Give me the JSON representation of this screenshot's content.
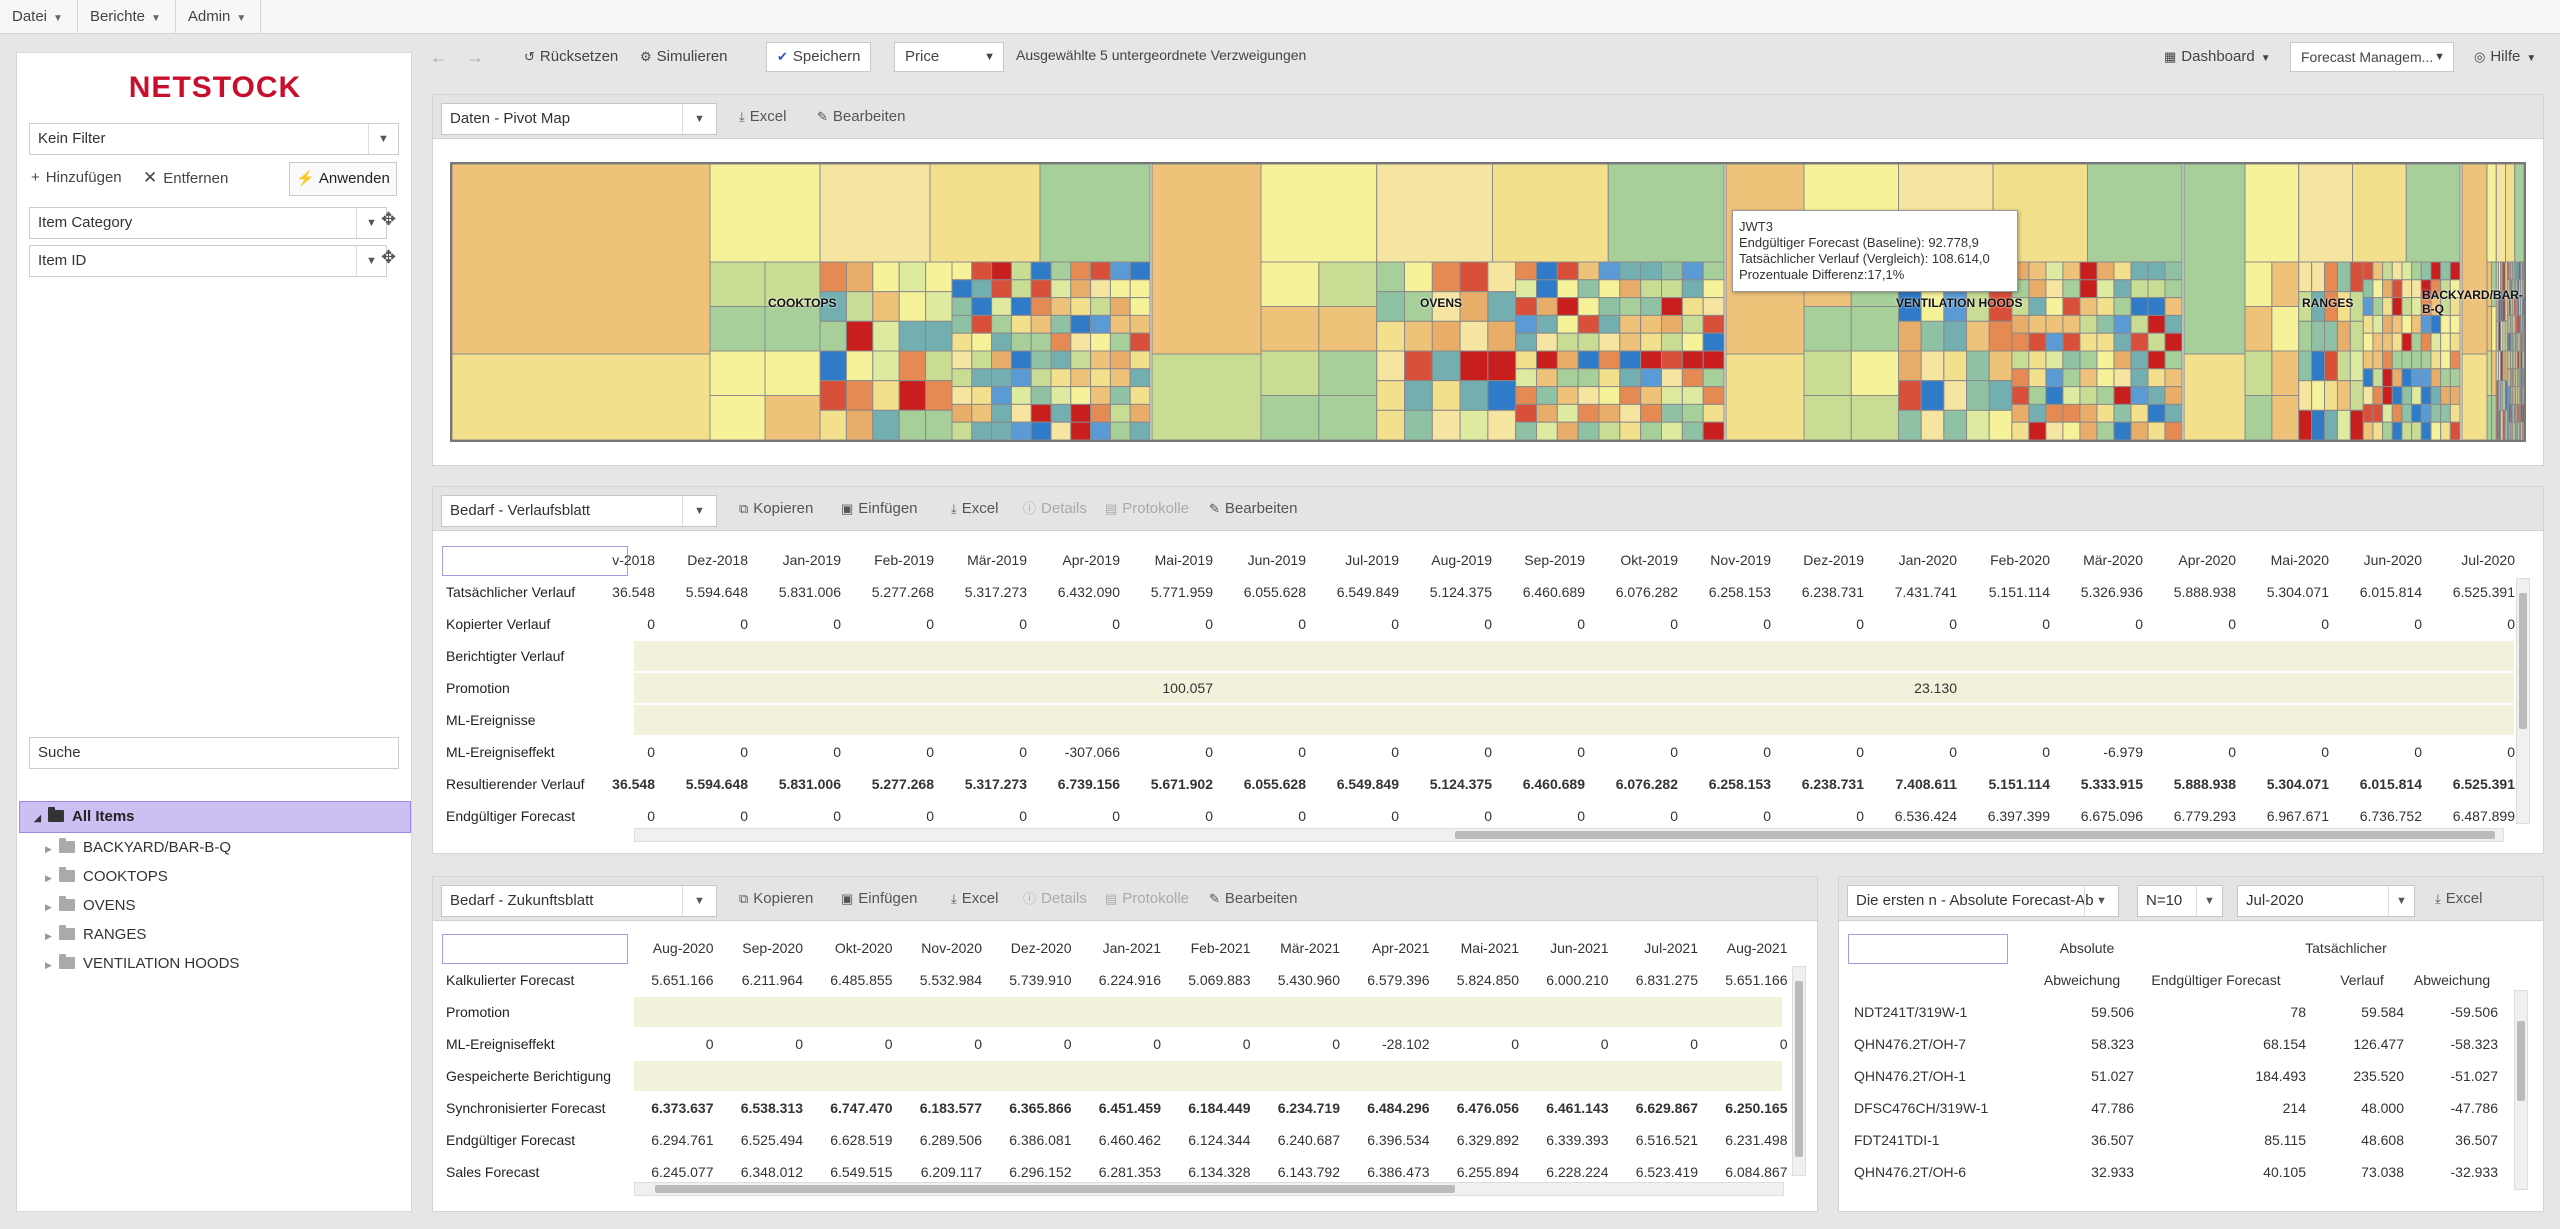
{
  "menu": {
    "items": [
      "Datei",
      "Berichte",
      "Admin"
    ]
  },
  "brand": {
    "logo": "NETSTOCK"
  },
  "sidebar": {
    "filter": "Kein Filter",
    "add": "Hinzufügen",
    "remove": "Entfernen",
    "apply": "Anwenden",
    "dims": [
      "Item Category",
      "Item ID"
    ],
    "search": "Suche",
    "tree": {
      "root": "All Items",
      "children": [
        "BACKYARD/BAR-B-Q",
        "COOKTOPS",
        "OVENS",
        "RANGES",
        "VENTILATION HOODS"
      ]
    }
  },
  "toolbar": {
    "reset": "Rücksetzen",
    "simulate": "Simulieren",
    "save": "Speichern",
    "measure": "Price",
    "selection_info": "Ausgewählte 5 untergeordnete Verzweigungen",
    "dashboard": "Dashboard",
    "profile": "Forecast Managem...",
    "help": "Hilfe"
  },
  "panel_pivot": {
    "select": "Daten - Pivot Map",
    "excel": "Excel",
    "edit": "Bearbeiten",
    "labels": {
      "cooktops": "COOKTOPS",
      "ovens": "OVENS",
      "vent": "VENTILATION HOODS",
      "ranges": "RANGES",
      "bbq1": "BACKYARD/BAR-",
      "bbq2": "B-Q"
    },
    "tooltip": {
      "title": "JWT3",
      "l1": "Endgültiger Forecast (Baseline): 92.778,9",
      "l2": "Tatsächlicher Verlauf (Vergleich): 108.614,0",
      "l3": "Prozentuale Differenz:17,1%"
    }
  },
  "panel_history": {
    "select": "Bedarf - Verlaufsblatt",
    "copy": "Kopieren",
    "paste": "Einfügen",
    "excel": "Excel",
    "details": "Details",
    "logs": "Protokolle",
    "edit": "Bearbeiten",
    "columns": [
      "v-2018",
      "Dez-2018",
      "Jan-2019",
      "Feb-2019",
      "Mär-2019",
      "Apr-2019",
      "Mai-2019",
      "Jun-2019",
      "Jul-2019",
      "Aug-2019",
      "Sep-2019",
      "Okt-2019",
      "Nov-2019",
      "Dez-2019",
      "Jan-2020",
      "Feb-2020",
      "Mär-2020",
      "Apr-2020",
      "Mai-2020",
      "Jun-2020",
      "Jul-2020"
    ],
    "rows": [
      {
        "label": "Tatsächlicher Verlauf",
        "values": [
          "36.548",
          "5.594.648",
          "5.831.006",
          "5.277.268",
          "5.317.273",
          "6.432.090",
          "5.771.959",
          "6.055.628",
          "6.549.849",
          "5.124.375",
          "6.460.689",
          "6.076.282",
          "6.258.153",
          "6.238.731",
          "7.431.741",
          "5.151.114",
          "5.326.936",
          "5.888.938",
          "5.304.071",
          "6.015.814",
          "6.525.391"
        ]
      },
      {
        "label": "Kopierter Verlauf",
        "values": [
          "0",
          "0",
          "0",
          "0",
          "0",
          "0",
          "0",
          "0",
          "0",
          "0",
          "0",
          "0",
          "0",
          "0",
          "0",
          "0",
          "0",
          "0",
          "0",
          "0",
          "0"
        ]
      },
      {
        "label": "Berichtigter Verlauf",
        "values": []
      },
      {
        "label": "Promotion",
        "values": [
          "",
          "",
          "",
          "",
          "",
          "",
          "100.057",
          "",
          "",
          "",
          "",
          "",
          "",
          "",
          "23.130",
          "",
          "",
          "",
          "",
          "",
          ""
        ]
      },
      {
        "label": "ML-Ereignisse",
        "values": []
      },
      {
        "label": "ML-Ereigniseffekt",
        "values": [
          "0",
          "0",
          "0",
          "0",
          "0",
          "-307.066",
          "0",
          "0",
          "0",
          "0",
          "0",
          "0",
          "0",
          "0",
          "0",
          "0",
          "-6.979",
          "0",
          "0",
          "0",
          "0"
        ]
      },
      {
        "label": "Resultierender Verlauf",
        "values": [
          "36.548",
          "5.594.648",
          "5.831.006",
          "5.277.268",
          "5.317.273",
          "6.739.156",
          "5.671.902",
          "6.055.628",
          "6.549.849",
          "5.124.375",
          "6.460.689",
          "6.076.282",
          "6.258.153",
          "6.238.731",
          "7.408.611",
          "5.151.114",
          "5.333.915",
          "5.888.938",
          "5.304.071",
          "6.015.814",
          "6.525.391"
        ]
      },
      {
        "label": "Endgültiger Forecast",
        "values": [
          "0",
          "0",
          "0",
          "0",
          "0",
          "0",
          "0",
          "0",
          "0",
          "0",
          "0",
          "0",
          "0",
          "0",
          "6.536.424",
          "6.397.399",
          "6.675.096",
          "6.779.293",
          "6.967.671",
          "6.736.752",
          "6.487.899"
        ]
      }
    ]
  },
  "panel_future": {
    "select": "Bedarf - Zukunftsblatt",
    "copy": "Kopieren",
    "paste": "Einfügen",
    "excel": "Excel",
    "details": "Details",
    "logs": "Protokolle",
    "edit": "Bearbeiten",
    "columns": [
      "Aug-2020",
      "Sep-2020",
      "Okt-2020",
      "Nov-2020",
      "Dez-2020",
      "Jan-2021",
      "Feb-2021",
      "Mär-2021",
      "Apr-2021",
      "Mai-2021",
      "Jun-2021",
      "Jul-2021",
      "Aug-2021"
    ],
    "rows": [
      {
        "label": "Kalkulierter Forecast",
        "values": [
          "5.651.166",
          "6.211.964",
          "6.485.855",
          "5.532.984",
          "5.739.910",
          "6.224.916",
          "5.069.883",
          "5.430.960",
          "6.579.396",
          "5.824.850",
          "6.000.210",
          "6.831.275",
          "5.651.166"
        ]
      },
      {
        "label": "Promotion",
        "values": []
      },
      {
        "label": "ML-Ereigniseffekt",
        "values": [
          "0",
          "0",
          "0",
          "0",
          "0",
          "0",
          "0",
          "0",
          "-28.102",
          "0",
          "0",
          "0",
          "0"
        ]
      },
      {
        "label": "Gespeicherte Berichtigung",
        "values": []
      },
      {
        "label": "Synchronisierter Forecast",
        "values": [
          "6.373.637",
          "6.538.313",
          "6.747.470",
          "6.183.577",
          "6.365.866",
          "6.451.459",
          "6.184.449",
          "6.234.719",
          "6.484.296",
          "6.476.056",
          "6.461.143",
          "6.629.867",
          "6.250.165"
        ]
      },
      {
        "label": "Endgültiger Forecast",
        "values": [
          "6.294.761",
          "6.525.494",
          "6.628.519",
          "6.289.506",
          "6.386.081",
          "6.460.462",
          "6.124.344",
          "6.240.687",
          "6.396.534",
          "6.329.892",
          "6.339.393",
          "6.516.521",
          "6.231.498"
        ]
      },
      {
        "label": "Sales Forecast",
        "values": [
          "6.245.077",
          "6.348.012",
          "6.549.515",
          "6.209.117",
          "6.296.152",
          "6.281.353",
          "6.134.328",
          "6.143.792",
          "6.386.473",
          "6.255.894",
          "6.228.224",
          "6.523.419",
          "6.084.867"
        ]
      }
    ]
  },
  "panel_topn": {
    "select": "Die ersten n - Absolute Forecast-Ab",
    "n": "N=10",
    "period": "Jul-2020",
    "excel": "Excel",
    "headers": {
      "c1a": "Absolute",
      "c1b": "Abweichung",
      "c2": "Endgültiger Forecast",
      "c3a": "Tatsächlicher",
      "c3b": "Verlauf",
      "c4": "Abweichung"
    },
    "rows": [
      {
        "item": "NDT241T/319W-1",
        "abs": "59.506",
        "fc": "78",
        "act": "59.584",
        "dev": "-59.506"
      },
      {
        "item": "QHN476.2T/OH-7",
        "abs": "58.323",
        "fc": "68.154",
        "act": "126.477",
        "dev": "-58.323"
      },
      {
        "item": "QHN476.2T/OH-1",
        "abs": "51.027",
        "fc": "184.493",
        "act": "235.520",
        "dev": "-51.027"
      },
      {
        "item": "DFSC476CH/319W-1",
        "abs": "47.786",
        "fc": "214",
        "act": "48.000",
        "dev": "-47.786"
      },
      {
        "item": "FDT241TDI-1",
        "abs": "36.507",
        "fc": "85.115",
        "act": "48.608",
        "dev": "36.507"
      },
      {
        "item": "QHN476.2T/OH-6",
        "abs": "32.933",
        "fc": "40.105",
        "act": "73.038",
        "dev": "-32.933"
      }
    ]
  }
}
